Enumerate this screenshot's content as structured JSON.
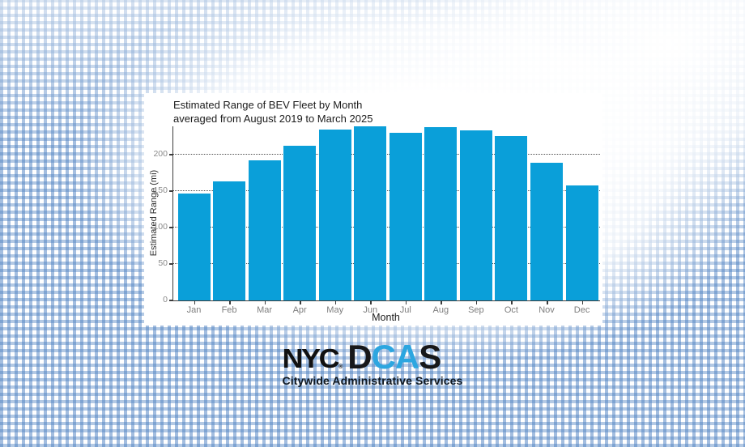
{
  "chart": {
    "title_line1": "Estimated Range of BEV Fleet by Month",
    "title_line2": "averaged from August 2019 to March 2025"
  },
  "chart_data": {
    "type": "bar",
    "title": "Estimated Range of BEV Fleet by Month averaged from August 2019 to March 2025",
    "xlabel": "Month",
    "ylabel": "Estimated Range (mi)",
    "categories": [
      "Jan",
      "Feb",
      "Mar",
      "Apr",
      "May",
      "Jun",
      "Jul",
      "Aug",
      "Sep",
      "Oct",
      "Nov",
      "Dec"
    ],
    "values": [
      147,
      163,
      192,
      212,
      235,
      239,
      230,
      238,
      233,
      226,
      189,
      158
    ],
    "yticks": [
      0,
      50,
      100,
      150,
      200
    ],
    "ylim": [
      0,
      240
    ],
    "grid": "horizontal-dotted",
    "legend": null,
    "bar_color": "#0a9fd9"
  },
  "logo": {
    "nyc_text": "NYC",
    "registered_mark": "®",
    "dcas_letters": [
      {
        "char": "D",
        "color": "#17181a"
      },
      {
        "char": "C",
        "color": "#2ca6e0"
      },
      {
        "char": "A",
        "color": "#2ca6e0"
      },
      {
        "char": "S",
        "color": "#17181a"
      }
    ],
    "tagline": "Citywide Administrative Services"
  },
  "colors": {
    "bar_blue": "#0a9fd9",
    "dcas_blue": "#2ca6e0",
    "logo_black": "#17181a",
    "background_stripe_blue": "#4a7ec0"
  }
}
